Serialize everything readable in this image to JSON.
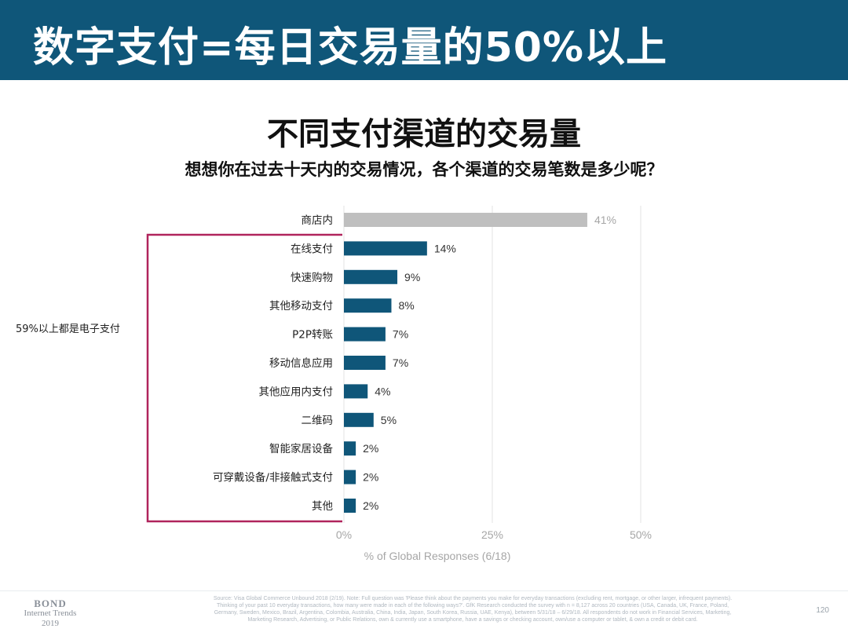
{
  "header": {
    "title": "数字支付=每日交易量的50%以上"
  },
  "chart_data": {
    "type": "bar",
    "orientation": "horizontal",
    "title": "不同支付渠道的交易量",
    "subtitle": "想想你在过去十天内的交易情况，各个渠道的交易笔数是多少呢？",
    "xlabel": "% of Global Responses (6/18)",
    "xlim": [
      0,
      50
    ],
    "x_ticks": [
      "0%",
      "25%",
      "50%"
    ],
    "x_tick_values": [
      0,
      25,
      50
    ],
    "grid": true,
    "categories": [
      "商店内",
      "在线支付",
      "快速购物",
      "其他移动支付",
      "P2P转账",
      "移动信息应用",
      "其他应用内支付",
      "二维码",
      "智能家居设备",
      "可穿戴设备/非接触式支付",
      "其他"
    ],
    "values": [
      41,
      14,
      9,
      8,
      7,
      7,
      4,
      5,
      2,
      2,
      2
    ],
    "value_labels": [
      "41%",
      "14%",
      "9%",
      "8%",
      "7%",
      "7%",
      "4%",
      "5%",
      "2%",
      "2%",
      "2%"
    ],
    "colors": {
      "first": "#bfbfbf",
      "rest": "#0f5679",
      "first_label": "#a6a6a6",
      "rest_label": "#333333"
    },
    "bracket": {
      "label": "59%以上都是电子支付",
      "color": "#b0245c"
    }
  },
  "footer": {
    "source": "Source: Visa Global Commerce Unbound 2018 (2/19). Note: Full question was 'Please think about the payments you make for everyday transactions (excluding rent, mortgage, or other larger, infrequent payments). Thinking of your past 10 everyday transactions, how many were made in each of the following ways?'. GfK Research conducted the survey with n = 8,127 across 20 countries (USA, Canada, UK, France, Poland, Germany, Sweden, Mexico, Brazil, Argentina, Colombia, Australia, China, India, Japan, South Korea, Russia, UAE, Kenya), between 5/31/18 – 6/29/18. All respondents do not work in Financial Services, Marketing, Marketing Research, Advertising, or Public Relations, own & currently use a smartphone, have a savings or checking account, own/use a computer or tablet, & own a credit or debit card.",
    "page": "120",
    "logo_line1": "BOND",
    "logo_line2": "Internet Trends",
    "logo_line3": "2019"
  }
}
